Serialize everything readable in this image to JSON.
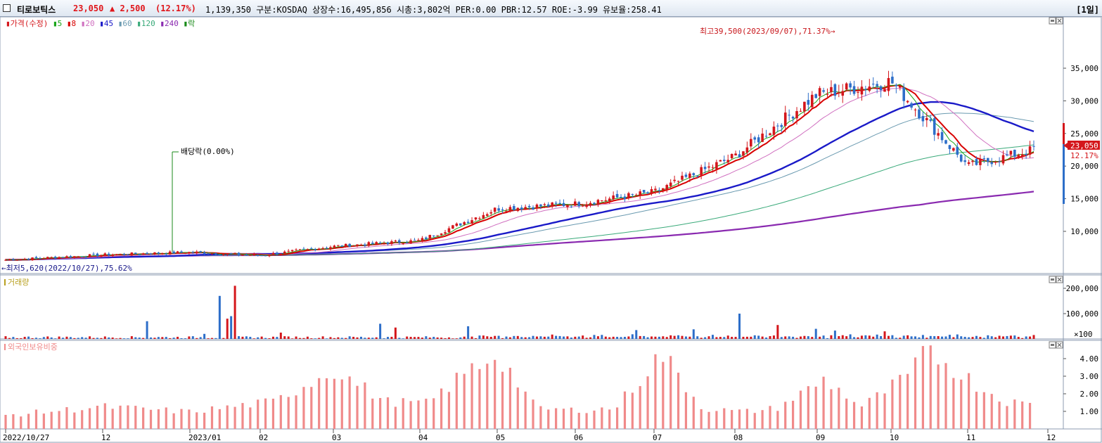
{
  "header": {
    "stock_name": "티로보틱스",
    "price": "23,050",
    "change": "▲ 2,500",
    "change_pct": "(12.17%)",
    "info": "1,139,350  구분:KOSDAQ 상장수:16,495,856 시총:3,802억 PER:0.00 PBR:12.57 ROE:-3.99 유보율:258.41",
    "period": "[1일]"
  },
  "colors": {
    "up": "#d4161b",
    "down": "#2d6ec9",
    "ma5": "#19a519",
    "ma8": "#d80000",
    "ma20": "#d070c0",
    "ma45": "#1a1ac8",
    "ma60": "#6a9ab0",
    "ma120": "#3aaa7a",
    "ma240": "#8a2ab0",
    "foreign": "#f08a8a"
  },
  "price_panel": {
    "legend": [
      {
        "label": "가격(수정)",
        "color": "#d4161b"
      },
      {
        "label": "5",
        "color": "#19a519"
      },
      {
        "label": "8",
        "color": "#d80000"
      },
      {
        "label": "20",
        "color": "#d070c0"
      },
      {
        "label": "45",
        "color": "#1a1ac8"
      },
      {
        "label": "60",
        "color": "#6a9ab0"
      },
      {
        "label": "120",
        "color": "#3aaa7a"
      },
      {
        "label": "240",
        "color": "#8a2ab0"
      },
      {
        "label": "락",
        "color": "#198a19"
      }
    ],
    "high_label": "최고39,500(2023/09/07),71.37%→",
    "low_label": "←최저5,620(2022/10/27),75.62%",
    "dividend_label": "배당락(0.00%)",
    "last_price_tag": "23,050",
    "last_pct_tag": "12.17%"
  },
  "volume_panel": {
    "title": "거래량",
    "unit": "×100"
  },
  "foreign_panel": {
    "title": "외국인보유비중"
  },
  "xaxis_labels": [
    "2022/10/27",
    "12",
    "2023/01",
    "02",
    "03",
    "04",
    "05",
    "06",
    "07",
    "08",
    "09",
    "10",
    "11",
    "12"
  ],
  "chart_data": [
    {
      "type": "candlestick",
      "title": "티로보틱스",
      "ylabel": "",
      "yticks": [
        10000,
        15000,
        20000,
        25000,
        30000,
        35000
      ],
      "ylim": [
        5000,
        40000
      ],
      "high": {
        "value": 39500,
        "date": "2023/09/07"
      },
      "low": {
        "value": 5620,
        "date": "2022/10/27"
      },
      "monthly_path": [
        {
          "x": "2022/10/27",
          "close": 5620
        },
        {
          "x": "2022-11",
          "close": 6400
        },
        {
          "x": "2022-12",
          "close": 6800
        },
        {
          "x": "2023-01",
          "close": 6300
        },
        {
          "x": "2023-02",
          "close": 7700
        },
        {
          "x": "2023-03",
          "close": 8600
        },
        {
          "x": "2023-04",
          "close": 13500
        },
        {
          "x": "2023-05",
          "close": 14200
        },
        {
          "x": "2023-06",
          "close": 16000
        },
        {
          "x": "2023-07",
          "close": 21500
        },
        {
          "x": "2023-08",
          "close": 31000
        },
        {
          "x": "2023-09",
          "close": 33000
        },
        {
          "x": "2023-10",
          "close": 20000
        },
        {
          "x": "2023-11",
          "close": 23050
        }
      ],
      "moving_averages": [
        {
          "name": "45",
          "values": [
            7200,
            7000,
            6700,
            6400,
            6600,
            7000,
            8000,
            11000,
            13500,
            17000,
            21500,
            27500,
            29500,
            23000
          ]
        },
        {
          "name": "240",
          "values": [
            7800,
            7600,
            7300,
            7200,
            7200,
            7200,
            7300,
            7700,
            8500,
            9500,
            11000,
            13500,
            15500,
            16800
          ]
        }
      ]
    },
    {
      "type": "bar",
      "title": "거래량",
      "yticks": [
        100000,
        200000
      ],
      "ylim": [
        0,
        220000
      ],
      "peak": {
        "x": "2023-04",
        "value": 210000
      }
    },
    {
      "type": "bar",
      "title": "외국인보유비중",
      "yticks": [
        1.0,
        2.0,
        3.0,
        4.0
      ],
      "ylim": [
        0,
        5
      ],
      "monthly_peaks": [
        {
          "x": "2023-03",
          "value": 3.5
        },
        {
          "x": "2023-05",
          "value": 4.4
        },
        {
          "x": "2023-07",
          "value": 4.4
        },
        {
          "x": "2023-09",
          "value": 3.0
        },
        {
          "x": "2023-11",
          "value": 4.6
        }
      ]
    }
  ]
}
